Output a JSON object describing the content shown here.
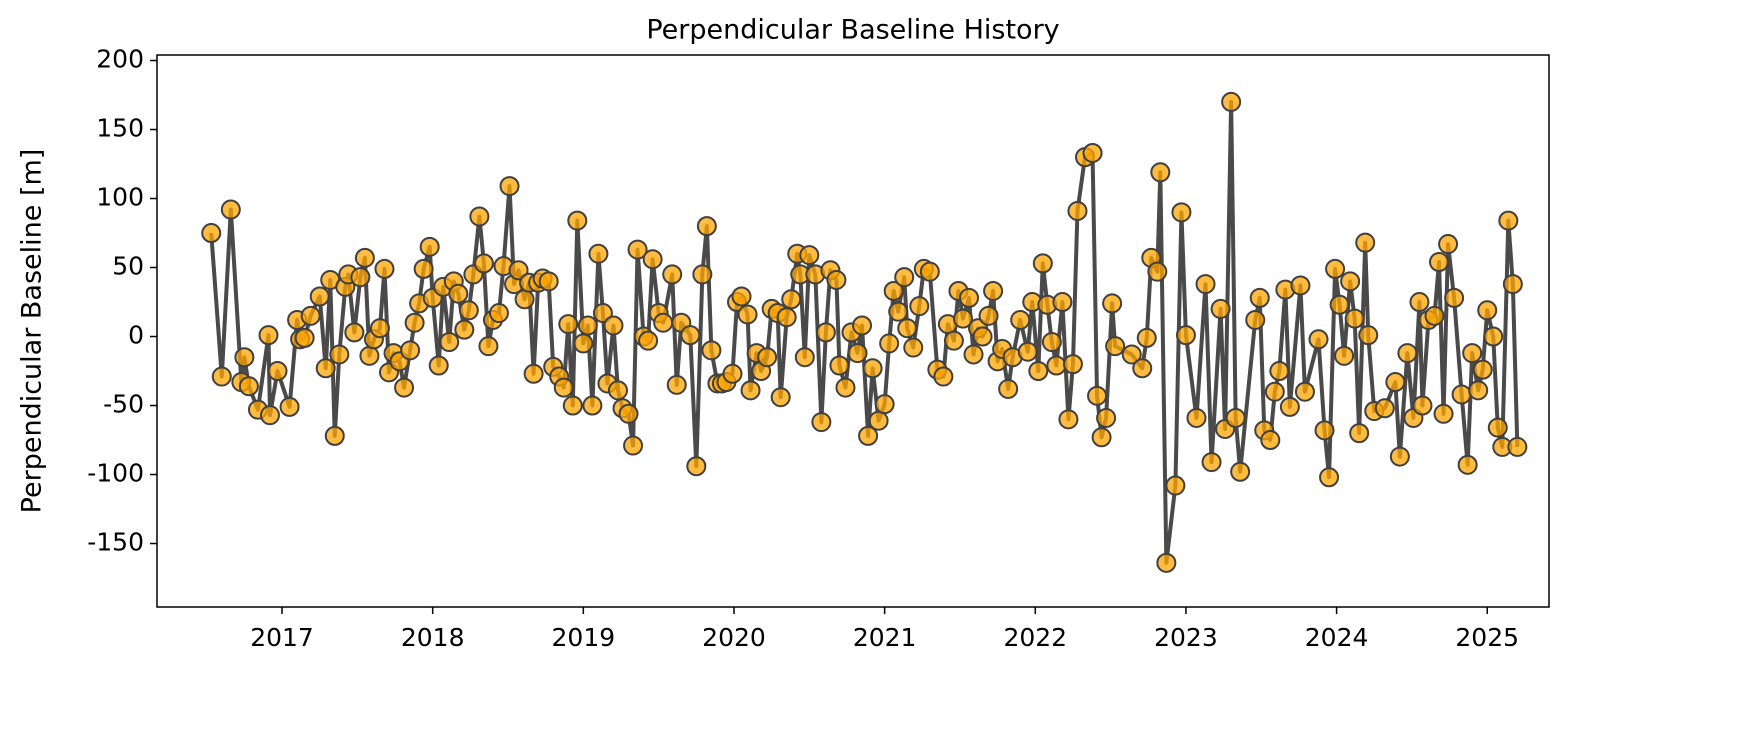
{
  "chart_data": {
    "type": "line",
    "title": "Perpendicular Baseline History",
    "ylabel": "Perpendicular Baseline [m]",
    "x": [
      2016.53,
      2016.6,
      2016.66,
      2016.73,
      2016.75,
      2016.78,
      2016.84,
      2016.91,
      2016.92,
      2016.97,
      2017.05,
      2017.1,
      2017.12,
      2017.15,
      2017.19,
      2017.25,
      2017.29,
      2017.32,
      2017.35,
      2017.38,
      2017.42,
      2017.44,
      2017.48,
      2017.52,
      2017.55,
      2017.58,
      2017.61,
      2017.65,
      2017.68,
      2017.71,
      2017.74,
      2017.78,
      2017.81,
      2017.85,
      2017.88,
      2017.91,
      2017.94,
      2017.98,
      2018.0,
      2018.04,
      2018.07,
      2018.11,
      2018.14,
      2018.17,
      2018.21,
      2018.24,
      2018.27,
      2018.31,
      2018.34,
      2018.37,
      2018.4,
      2018.44,
      2018.47,
      2018.51,
      2018.54,
      2018.57,
      2018.61,
      2018.64,
      2018.67,
      2018.7,
      2018.73,
      2018.77,
      2018.8,
      2018.84,
      2018.87,
      2018.9,
      2018.93,
      2018.96,
      2019.0,
      2019.03,
      2019.06,
      2019.1,
      2019.13,
      2019.16,
      2019.2,
      2019.23,
      2019.26,
      2019.3,
      2019.33,
      2019.36,
      2019.4,
      2019.43,
      2019.46,
      2019.5,
      2019.53,
      2019.59,
      2019.62,
      2019.65,
      2019.71,
      2019.75,
      2019.79,
      2019.82,
      2019.85,
      2019.89,
      2019.92,
      2019.95,
      2019.99,
      2020.02,
      2020.05,
      2020.09,
      2020.11,
      2020.15,
      2020.18,
      2020.22,
      2020.25,
      2020.29,
      2020.31,
      2020.35,
      2020.38,
      2020.42,
      2020.44,
      2020.47,
      2020.5,
      2020.54,
      2020.58,
      2020.61,
      2020.64,
      2020.68,
      2020.7,
      2020.74,
      2020.78,
      2020.82,
      2020.85,
      2020.89,
      2020.92,
      2020.96,
      2021.0,
      2021.03,
      2021.06,
      2021.09,
      2021.13,
      2021.15,
      2021.19,
      2021.23,
      2021.26,
      2021.3,
      2021.35,
      2021.39,
      2021.42,
      2021.46,
      2021.49,
      2021.52,
      2021.56,
      2021.59,
      2021.62,
      2021.65,
      2021.69,
      2021.72,
      2021.75,
      2021.78,
      2021.82,
      2021.85,
      2021.9,
      2021.95,
      2021.98,
      2022.02,
      2022.05,
      2022.08,
      2022.11,
      2022.14,
      2022.18,
      2022.22,
      2022.25,
      2022.28,
      2022.33,
      2022.38,
      2022.41,
      2022.44,
      2022.47,
      2022.51,
      2022.53,
      2022.64,
      2022.71,
      2022.74,
      2022.77,
      2022.81,
      2022.83,
      2022.87,
      2022.93,
      2022.97,
      2023.0,
      2023.07,
      2023.13,
      2023.17,
      2023.23,
      2023.26,
      2023.3,
      2023.33,
      2023.36,
      2023.46,
      2023.49,
      2023.52,
      2023.56,
      2023.59,
      2023.62,
      2023.66,
      2023.69,
      2023.76,
      2023.79,
      2023.88,
      2023.92,
      2023.95,
      2023.99,
      2024.02,
      2024.05,
      2024.09,
      2024.12,
      2024.15,
      2024.19,
      2024.21,
      2024.25,
      2024.32,
      2024.39,
      2024.42,
      2024.47,
      2024.51,
      2024.55,
      2024.57,
      2024.61,
      2024.65,
      2024.68,
      2024.71,
      2024.74,
      2024.78,
      2024.83,
      2024.87,
      2024.9,
      2024.94,
      2024.97,
      2025.0,
      2025.04,
      2025.07,
      2025.1,
      2025.14,
      2025.17,
      2025.2
    ],
    "values": [
      75,
      -29,
      92,
      -33,
      -15,
      -36,
      -53,
      1,
      -57,
      -25,
      -51,
      12,
      -2,
      -1,
      15,
      29,
      -23,
      41,
      -72,
      -13,
      36,
      45,
      3,
      43,
      57,
      -14,
      -2,
      6,
      49,
      -26,
      -12,
      -18,
      -37,
      -10,
      10,
      24,
      49,
      65,
      28,
      -21,
      36,
      -4,
      40,
      31,
      5,
      19,
      45,
      87,
      53,
      -7,
      12,
      17,
      51,
      109,
      38,
      48,
      27,
      39,
      -27,
      39,
      42,
      40,
      -22,
      -29,
      -37,
      9,
      -50,
      84,
      -5,
      8,
      -50,
      60,
      17,
      -34,
      8,
      -39,
      -52,
      -56,
      -79,
      63,
      0,
      -3,
      56,
      17,
      10,
      45,
      -35,
      10,
      1,
      -94,
      45,
      80,
      -10,
      -34,
      -34,
      -33,
      -27,
      25,
      29,
      16,
      -39,
      -12,
      -25,
      -15,
      20,
      17,
      -44,
      14,
      27,
      60,
      45,
      -15,
      59,
      45,
      -62,
      3,
      48,
      41,
      -21,
      -37,
      3,
      -12,
      8,
      -72,
      -23,
      -61,
      -49,
      -5,
      33,
      18,
      43,
      6,
      -8,
      22,
      49,
      47,
      -24,
      -29,
      9,
      -3,
      33,
      13,
      28,
      -13,
      6,
      0,
      15,
      33,
      -18,
      -9,
      -38,
      -15,
      12,
      -11,
      25,
      -25,
      53,
      23,
      -4,
      -21,
      25,
      -60,
      -20,
      91,
      130,
      133,
      -43,
      -73,
      -59,
      24,
      -7,
      -13,
      -23,
      -1,
      57,
      47,
      119,
      -164,
      -108,
      90,
      1,
      -59,
      38,
      -91,
      20,
      -67,
      170,
      -59,
      -98,
      12,
      28,
      -68,
      -75,
      -40,
      -25,
      34,
      -51,
      37,
      -40,
      -2,
      -68,
      -102,
      49,
      23,
      -14,
      40,
      13,
      -70,
      68,
      1,
      -54,
      -52,
      -33,
      -87,
      -12,
      -59,
      25,
      -50,
      12,
      15,
      54,
      -56,
      67,
      28,
      -42,
      -93,
      -12,
      -39,
      -24,
      19,
      0,
      -66,
      -80,
      84,
      38,
      -80
    ],
    "color": "#ffa500",
    "line_color": "#404040",
    "xlim": [
      2016.17,
      2025.41
    ],
    "ylim": [
      -196,
      204
    ],
    "xticks": [
      2017,
      2018,
      2019,
      2020,
      2021,
      2022,
      2023,
      2024,
      2025
    ],
    "yticks": [
      -150,
      -100,
      -50,
      0,
      50,
      100,
      150,
      200
    ],
    "grid": false
  }
}
